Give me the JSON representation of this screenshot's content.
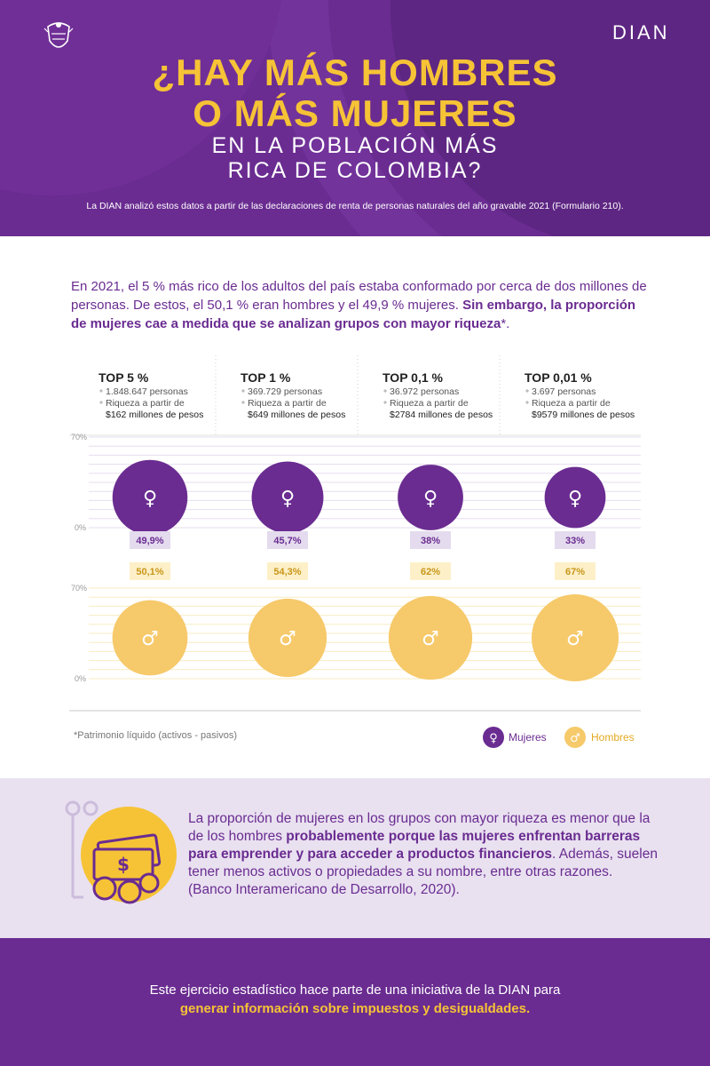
{
  "header": {
    "logo_text": "DIAN",
    "title_line1": "¿HAY MÁS HOMBRES",
    "title_line2": "O MÁS MUJERES",
    "subtitle_line1": "EN LA POBLACIÓN MÁS",
    "subtitle_line2": "RICA DE COLOMBIA?",
    "source_note": "La DIAN analizó estos datos a partir de las declaraciones de renta de personas naturales del año gravable 2021 (Formulario 210)."
  },
  "intro": {
    "text_plain": "En 2021, el 5 % más rico de los adultos del país estaba conformado por cerca de dos millones de personas. De estos, el 50,1 % eran hombres y el 49,9 % mujeres. ",
    "text_bold": "Sin embargo, la proporción de mujeres cae a medida que se analizan grupos con mayor riqueza",
    "text_tail": "*."
  },
  "chart_data": {
    "type": "bubble",
    "title": "¿Hay más hombres o más mujeres en la población más rica de Colombia?",
    "axis_top": {
      "min_label": "0%",
      "max_label": "70%",
      "range": [
        0,
        70
      ]
    },
    "axis_bottom": {
      "min_label": "0%",
      "max_label": "70%",
      "range": [
        0,
        70
      ]
    },
    "categories": [
      {
        "label": "TOP 5 %",
        "persons": "1.848.647 personas",
        "wealth_line1": "Riqueza a partir de",
        "wealth_line2": "$162 millones de pesos"
      },
      {
        "label": "TOP 1 %",
        "persons": "369.729 personas",
        "wealth_line1": "Riqueza a partir de",
        "wealth_line2": "$649 millones de pesos"
      },
      {
        "label": "TOP 0,1 %",
        "persons": "36.972 personas",
        "wealth_line1": "Riqueza a partir de",
        "wealth_line2": "$2784 millones de pesos"
      },
      {
        "label": "TOP 0,01 %",
        "persons": "3.697 personas",
        "wealth_line1": "Riqueza a partir de",
        "wealth_line2": "$9579 millones de pesos"
      }
    ],
    "series": [
      {
        "name": "Mujeres",
        "values": [
          49.9,
          45.7,
          38,
          33
        ],
        "labels": [
          "49,9%",
          "45,7%",
          "38%",
          "33%"
        ],
        "color": "#6a2c91",
        "label_bg": "#e4dbee",
        "symbol": "♀"
      },
      {
        "name": "Hombres",
        "values": [
          50.1,
          54.3,
          62,
          67
        ],
        "labels": [
          "50,1%",
          "54,3%",
          "62%",
          "67%"
        ],
        "color": "#f6c96a",
        "label_bg": "#fdf0c8",
        "symbol": "♂"
      }
    ],
    "footnote": "*Patrimonio líquido (activos - pasivos)",
    "legend": [
      {
        "name": "Mujeres",
        "symbol": "♀",
        "color": "#6a2c91"
      },
      {
        "name": "Hombres",
        "symbol": "♂",
        "color": "#f6c96a"
      }
    ]
  },
  "explanation": {
    "line1": "La proporción de mujeres en los grupos con mayor riqueza es menor que la de los hombres ",
    "bold": "probablemente porque las mujeres enfrentan barreras para emprender y para acceder a productos financieros",
    "line2": ". Además, suelen tener menos activos o propiedades a su nombre, entre otras razones.",
    "citation": "(Banco Interamericano de Desarrollo, 2020)."
  },
  "footer": {
    "line1": "Este ejercicio estadístico hace parte de una iniciativa de la DIAN para",
    "line2": "generar información sobre impuestos y desigualdades."
  },
  "colors": {
    "purple": "#6a2c91",
    "gold": "#f6c336",
    "light_gold": "#f6c96a",
    "lavender": "#e9e1f0"
  }
}
